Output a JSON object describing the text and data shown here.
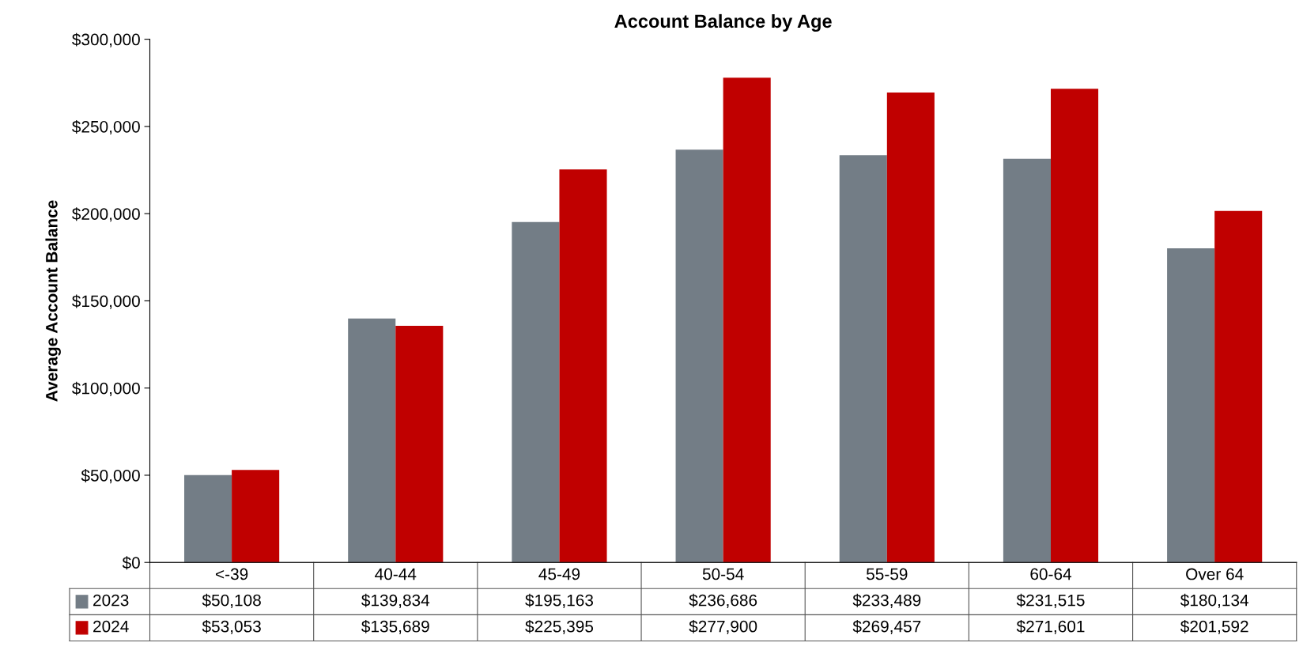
{
  "chart_data": {
    "type": "bar",
    "title": "Account Balance by Age",
    "ylabel": "Average Account Balance",
    "categories": [
      "<-39",
      "40-44",
      "45-49",
      "50-54",
      "55-59",
      "60-64",
      "Over 64"
    ],
    "series": [
      {
        "name": "2023",
        "color": "#737d86",
        "values": [
          50108,
          139834,
          195163,
          236686,
          233489,
          231515,
          180134
        ],
        "value_labels": [
          "$50,108",
          "$139,834",
          "$195,163",
          "$236,686",
          "$233,489",
          "$231,515",
          "$180,134"
        ]
      },
      {
        "name": "2024",
        "color": "#c00000",
        "values": [
          53053,
          135689,
          225395,
          277900,
          269457,
          271601,
          201592
        ],
        "value_labels": [
          "$53,053",
          "$135,689",
          "$225,395",
          "$277,900",
          "$269,457",
          "$271,601",
          "$201,592"
        ]
      }
    ],
    "ylim": [
      0,
      300000
    ],
    "yticks": [
      {
        "value": 0,
        "label": "$0"
      },
      {
        "value": 50000,
        "label": "$50,000"
      },
      {
        "value": 100000,
        "label": "$100,000"
      },
      {
        "value": 150000,
        "label": "$150,000"
      },
      {
        "value": 200000,
        "label": "$200,000"
      },
      {
        "value": 250000,
        "label": "$250,000"
      },
      {
        "value": 300000,
        "label": "$300,000"
      }
    ],
    "legend": "bottom",
    "grid": false
  }
}
